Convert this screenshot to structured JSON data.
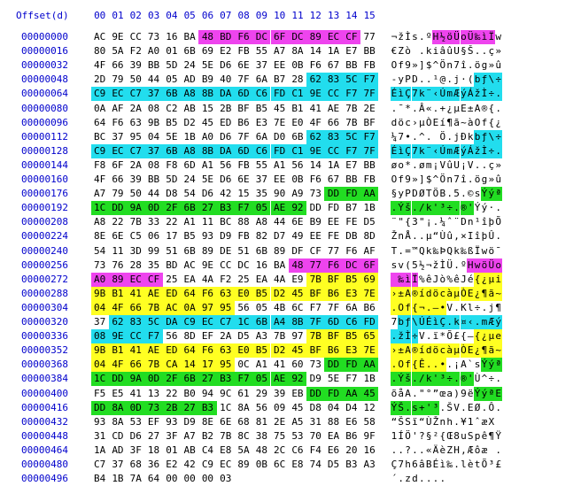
{
  "header": {
    "label": "Offset(d)",
    "columns": [
      "00",
      "01",
      "02",
      "03",
      "04",
      "05",
      "06",
      "07",
      "08",
      "09",
      "10",
      "11",
      "12",
      "13",
      "14",
      "15"
    ]
  },
  "colors": {
    "cyan": "#22ddee",
    "magenta": "#ee44ee",
    "green": "#22dd22",
    "yellow": "#ffff22"
  },
  "rows": [
    {
      "offset": "00000000",
      "hex": [
        "AC",
        "9E",
        "CC",
        "73",
        "16",
        "BA",
        "48",
        "BD",
        "F6",
        "DC",
        "6F",
        "DC",
        "89",
        "EC",
        "CF",
        "77"
      ],
      "ascii": "¬žÌs.ºH½öÜoÜ‰ìÏw",
      "hl": [
        null,
        null,
        null,
        null,
        null,
        null,
        "magenta",
        "magenta",
        "magenta",
        "magenta",
        "magenta",
        "magenta",
        "magenta",
        "magenta",
        "magenta",
        null
      ]
    },
    {
      "offset": "00000016",
      "hex": [
        "80",
        "5A",
        "F2",
        "A0",
        "01",
        "6B",
        "69",
        "E2",
        "FB",
        "55",
        "A7",
        "8A",
        "14",
        "1A",
        "E7",
        "BB"
      ],
      "ascii": "€Zò .kiâûU§Š..ç»",
      "hl": [
        null,
        null,
        null,
        null,
        null,
        null,
        null,
        null,
        null,
        null,
        null,
        null,
        null,
        null,
        null,
        null
      ]
    },
    {
      "offset": "00000032",
      "hex": [
        "4F",
        "66",
        "39",
        "BB",
        "5D",
        "24",
        "5E",
        "D6",
        "6E",
        "37",
        "EE",
        "0B",
        "F6",
        "67",
        "BB",
        "FB"
      ],
      "ascii": "Of9»]$^Ön7î.ög»û",
      "hl": [
        null,
        null,
        null,
        null,
        null,
        null,
        null,
        null,
        null,
        null,
        null,
        null,
        null,
        null,
        null,
        null
      ]
    },
    {
      "offset": "00000048",
      "hex": [
        "2D",
        "79",
        "50",
        "44",
        "05",
        "AD",
        "B9",
        "40",
        "7F",
        "6A",
        "B7",
        "28",
        "62",
        "83",
        "5C",
        "F7"
      ],
      "ascii": "-yPD..¹@.j·(bƒ\\÷",
      "hl": [
        null,
        null,
        null,
        null,
        null,
        null,
        null,
        null,
        null,
        null,
        null,
        null,
        "cyan",
        "cyan",
        "cyan",
        "cyan"
      ]
    },
    {
      "offset": "00000064",
      "hex": [
        "C9",
        "EC",
        "C7",
        "37",
        "6B",
        "A8",
        "8B",
        "DA",
        "6D",
        "C6",
        "FD",
        "C1",
        "9E",
        "CC",
        "F7",
        "7F"
      ],
      "ascii": "ÉìÇ7k¨‹ÚmÆýÁžÌ÷.",
      "hl": [
        "cyan",
        "cyan",
        "cyan",
        "cyan",
        "cyan",
        "cyan",
        "cyan",
        "cyan",
        "cyan",
        "cyan",
        "cyan",
        "cyan",
        "cyan",
        "cyan",
        "cyan",
        "cyan"
      ]
    },
    {
      "offset": "00000080",
      "hex": [
        "0A",
        "AF",
        "2A",
        "08",
        "C2",
        "AB",
        "15",
        "2B",
        "BF",
        "B5",
        "45",
        "B1",
        "41",
        "AE",
        "7B",
        "2E"
      ],
      "ascii": ".¯*.Â«.+¿µE±A®{.",
      "hl": [
        null,
        null,
        null,
        null,
        null,
        null,
        null,
        null,
        null,
        null,
        null,
        null,
        null,
        null,
        null,
        null
      ]
    },
    {
      "offset": "00000096",
      "hex": [
        "64",
        "F6",
        "63",
        "9B",
        "B5",
        "D2",
        "45",
        "ED",
        "B6",
        "E3",
        "7E",
        "E0",
        "4F",
        "66",
        "7B",
        "BF"
      ],
      "ascii": "döc›µÒEí¶ã~àOf{¿",
      "hl": [
        null,
        null,
        null,
        null,
        null,
        null,
        null,
        null,
        null,
        null,
        null,
        null,
        null,
        null,
        null,
        null
      ]
    },
    {
      "offset": "00000112",
      "hex": [
        "BC",
        "37",
        "95",
        "04",
        "5E",
        "1B",
        "A0",
        "D6",
        "7F",
        "6A",
        "D0",
        "6B",
        "62",
        "83",
        "5C",
        "F7"
      ],
      "ascii": "¼7•.^. Ö.jÐkbƒ\\÷",
      "hl": [
        null,
        null,
        null,
        null,
        null,
        null,
        null,
        null,
        null,
        null,
        null,
        null,
        "cyan",
        "cyan",
        "cyan",
        "cyan"
      ]
    },
    {
      "offset": "00000128",
      "hex": [
        "C9",
        "EC",
        "C7",
        "37",
        "6B",
        "A8",
        "8B",
        "DA",
        "6D",
        "C6",
        "FD",
        "C1",
        "9E",
        "CC",
        "F7",
        "7F"
      ],
      "ascii": "ÉìÇ7k¨‹ÚmÆýÁžÌ÷.",
      "hl": [
        "cyan",
        "cyan",
        "cyan",
        "cyan",
        "cyan",
        "cyan",
        "cyan",
        "cyan",
        "cyan",
        "cyan",
        "cyan",
        "cyan",
        "cyan",
        "cyan",
        "cyan",
        "cyan"
      ]
    },
    {
      "offset": "00000144",
      "hex": [
        "F8",
        "6F",
        "2A",
        "08",
        "F8",
        "6D",
        "A1",
        "56",
        "FB",
        "55",
        "A1",
        "56",
        "14",
        "1A",
        "E7",
        "BB"
      ],
      "ascii": "øo*.øm¡VûU¡V..ç»",
      "hl": [
        null,
        null,
        null,
        null,
        null,
        null,
        null,
        null,
        null,
        null,
        null,
        null,
        null,
        null,
        null,
        null
      ]
    },
    {
      "offset": "00000160",
      "hex": [
        "4F",
        "66",
        "39",
        "BB",
        "5D",
        "24",
        "5E",
        "D6",
        "6E",
        "37",
        "EE",
        "0B",
        "F6",
        "67",
        "BB",
        "FB"
      ],
      "ascii": "Of9»]$^Ön7î.ög»û",
      "hl": [
        null,
        null,
        null,
        null,
        null,
        null,
        null,
        null,
        null,
        null,
        null,
        null,
        null,
        null,
        null,
        null
      ]
    },
    {
      "offset": "00000176",
      "hex": [
        "A7",
        "79",
        "50",
        "44",
        "D8",
        "54",
        "D6",
        "42",
        "15",
        "35",
        "90",
        "A9",
        "73",
        "DD",
        "FD",
        "AA"
      ],
      "ascii": "§yPDØTÖB.5.©sÝýª",
      "hl": [
        null,
        null,
        null,
        null,
        null,
        null,
        null,
        null,
        null,
        null,
        null,
        null,
        null,
        "green",
        "green",
        "green"
      ]
    },
    {
      "offset": "00000192",
      "hex": [
        "1C",
        "DD",
        "9A",
        "0D",
        "2F",
        "6B",
        "27",
        "B3",
        "F7",
        "05",
        "AE",
        "92",
        "DD",
        "FD",
        "B7",
        "1B"
      ],
      "ascii": ".Ýš./k'³÷.®'Ýý·.",
      "hl": [
        "green",
        "green",
        "green",
        "green",
        "green",
        "green",
        "green",
        "green",
        "green",
        "green",
        "green",
        "green",
        null,
        null,
        null,
        null
      ]
    },
    {
      "offset": "00000208",
      "hex": [
        "A8",
        "22",
        "7B",
        "33",
        "22",
        "A1",
        "11",
        "BC",
        "88",
        "A8",
        "44",
        "6E",
        "B9",
        "EE",
        "FE",
        "D5"
      ],
      "ascii": "¨\"{3\"¡.¼ˆ¨Dn¹îþÕ",
      "hl": [
        null,
        null,
        null,
        null,
        null,
        null,
        null,
        null,
        null,
        null,
        null,
        null,
        null,
        null,
        null,
        null
      ]
    },
    {
      "offset": "00000224",
      "hex": [
        "8E",
        "6E",
        "C5",
        "06",
        "17",
        "B5",
        "93",
        "D9",
        "FB",
        "82",
        "D7",
        "49",
        "EE",
        "FE",
        "DB",
        "8D"
      ],
      "ascii": "ŽnÅ..µ“Ùû‚×IîþÛ.",
      "hl": [
        null,
        null,
        null,
        null,
        null,
        null,
        null,
        null,
        null,
        null,
        null,
        null,
        null,
        null,
        null,
        null
      ]
    },
    {
      "offset": "00000240",
      "hex": [
        "54",
        "11",
        "3D",
        "99",
        "51",
        "6B",
        "89",
        "DE",
        "51",
        "6B",
        "89",
        "DF",
        "CF",
        "77",
        "F6",
        "AF"
      ],
      "ascii": "T.=™Qk‰ÞQk‰ßÏwö¯",
      "hl": [
        null,
        null,
        null,
        null,
        null,
        null,
        null,
        null,
        null,
        null,
        null,
        null,
        null,
        null,
        null,
        null
      ]
    },
    {
      "offset": "00000256",
      "hex": [
        "73",
        "76",
        "28",
        "35",
        "BD",
        "AC",
        "9E",
        "CC",
        "DC",
        "16",
        "BA",
        "48",
        "77",
        "F6",
        "DC",
        "6F"
      ],
      "ascii": "sv(5½¬žÌÜ.ºHwöÜo",
      "hl": [
        null,
        null,
        null,
        null,
        null,
        null,
        null,
        null,
        null,
        null,
        null,
        "magenta",
        "magenta",
        "magenta",
        "magenta",
        "magenta"
      ]
    },
    {
      "offset": "00000272",
      "hex": [
        "A0",
        "89",
        "EC",
        "CF",
        "25",
        "EA",
        "4A",
        "F2",
        "25",
        "EA",
        "4A",
        "E9",
        "7B",
        "BF",
        "B5",
        "69"
      ],
      "ascii": " ‰ìÏ%êJò%êJé{¿µi",
      "hl": [
        "magenta",
        "magenta",
        "magenta",
        "magenta",
        null,
        null,
        null,
        null,
        null,
        null,
        null,
        null,
        "yellow",
        "yellow",
        "yellow",
        "yellow"
      ]
    },
    {
      "offset": "00000288",
      "hex": [
        "9B",
        "B1",
        "41",
        "AE",
        "ED",
        "64",
        "F6",
        "63",
        "E0",
        "B5",
        "D2",
        "45",
        "BF",
        "B6",
        "E3",
        "7E"
      ],
      "ascii": "›±A®ídöcàµÒE¿¶ã~",
      "hl": [
        "yellow",
        "yellow",
        "yellow",
        "yellow",
        "yellow",
        "yellow",
        "yellow",
        "yellow",
        "yellow",
        "yellow",
        "yellow",
        "yellow",
        "yellow",
        "yellow",
        "yellow",
        "yellow"
      ]
    },
    {
      "offset": "00000304",
      "hex": [
        "04",
        "4F",
        "66",
        "7B",
        "AC",
        "0A",
        "97",
        "95",
        "56",
        "05",
        "4B",
        "6C",
        "F7",
        "7F",
        "6A",
        "B6"
      ],
      "ascii": ".Of{¬.—•V.Kl÷.j¶",
      "hl": [
        "yellow",
        "yellow",
        "yellow",
        "yellow",
        "yellow",
        "yellow",
        "yellow",
        "yellow",
        null,
        null,
        null,
        null,
        null,
        null,
        null,
        null
      ]
    },
    {
      "offset": "00000320",
      "hex": [
        "37",
        "62",
        "83",
        "5C",
        "DA",
        "C9",
        "EC",
        "C7",
        "1C",
        "6B",
        "A4",
        "8B",
        "7F",
        "6D",
        "C6",
        "FD"
      ],
      "ascii": "7bƒ\\ÚÉìÇ.k¤‹.mÆý",
      "hl": [
        null,
        "cyan",
        "cyan",
        "cyan",
        "cyan",
        "cyan",
        "cyan",
        "cyan",
        "cyan",
        "cyan",
        "cyan",
        "cyan",
        "cyan",
        "cyan",
        "cyan",
        "cyan"
      ]
    },
    {
      "offset": "00000336",
      "hex": [
        "08",
        "9E",
        "CC",
        "F7",
        "56",
        "8D",
        "EF",
        "2A",
        "D5",
        "A3",
        "7B",
        "97",
        "7B",
        "BF",
        "B5",
        "65"
      ],
      "ascii": ".žÌ÷V.ï*Õ£{—{¿µe",
      "hl": [
        "cyan",
        "cyan",
        "cyan",
        "cyan",
        null,
        null,
        null,
        null,
        null,
        null,
        null,
        null,
        "yellow",
        "yellow",
        "yellow",
        "yellow"
      ]
    },
    {
      "offset": "00000352",
      "hex": [
        "9B",
        "B1",
        "41",
        "AE",
        "ED",
        "64",
        "F6",
        "63",
        "E0",
        "B5",
        "D2",
        "45",
        "BF",
        "B6",
        "E3",
        "7E"
      ],
      "ascii": "›±A®ídöcàµÒE¿¶ã~",
      "hl": [
        "yellow",
        "yellow",
        "yellow",
        "yellow",
        "yellow",
        "yellow",
        "yellow",
        "yellow",
        "yellow",
        "yellow",
        "yellow",
        "yellow",
        "yellow",
        "yellow",
        "yellow",
        "yellow"
      ]
    },
    {
      "offset": "00000368",
      "hex": [
        "04",
        "4F",
        "66",
        "7B",
        "CA",
        "14",
        "17",
        "95",
        "0C",
        "A1",
        "41",
        "60",
        "73",
        "DD",
        "FD",
        "AA"
      ],
      "ascii": ".Of{Ê..•.¡A`sÝýª",
      "hl": [
        "yellow",
        "yellow",
        "yellow",
        "yellow",
        "yellow",
        "yellow",
        "yellow",
        "yellow",
        null,
        null,
        null,
        null,
        null,
        "green",
        "green",
        "green"
      ]
    },
    {
      "offset": "00000384",
      "hex": [
        "1C",
        "DD",
        "9A",
        "0D",
        "2F",
        "6B",
        "27",
        "B3",
        "F7",
        "05",
        "AE",
        "92",
        "D9",
        "5E",
        "F7",
        "1B"
      ],
      "ascii": ".Ýš./k'³÷.®'Ù^÷.",
      "hl": [
        "green",
        "green",
        "green",
        "green",
        "green",
        "green",
        "green",
        "green",
        "green",
        "green",
        "green",
        "green",
        null,
        null,
        null,
        null
      ]
    },
    {
      "offset": "00000400",
      "hex": [
        "F5",
        "E5",
        "41",
        "13",
        "22",
        "B0",
        "94",
        "9C",
        "61",
        "29",
        "39",
        "EB",
        "DD",
        "FD",
        "AA",
        "45"
      ],
      "ascii": "õåA.\"°”œa)9ëÝýªE",
      "hl": [
        null,
        null,
        null,
        null,
        null,
        null,
        null,
        null,
        null,
        null,
        null,
        null,
        "green",
        "green",
        "green",
        "green"
      ]
    },
    {
      "offset": "00000416",
      "hex": [
        "DD",
        "8A",
        "0D",
        "73",
        "2B",
        "27",
        "B3",
        "1C",
        "8A",
        "56",
        "09",
        "45",
        "D8",
        "04",
        "D4",
        "12"
      ],
      "ascii": "ÝŠ.s+'³.ŠV.EØ.Ô.",
      "hl": [
        "green",
        "green",
        "green",
        "green",
        "green",
        "green",
        "green",
        null,
        null,
        null,
        null,
        null,
        null,
        null,
        null,
        null
      ]
    },
    {
      "offset": "00000432",
      "hex": [
        "93",
        "8A",
        "53",
        "EF",
        "93",
        "D9",
        "8E",
        "6E",
        "68",
        "81",
        "2E",
        "A5",
        "31",
        "88",
        "E6",
        "58"
      ],
      "ascii": "“ŠSï“ÙŽnh.¥1ˆæX",
      "hl": [
        null,
        null,
        null,
        null,
        null,
        null,
        null,
        null,
        null,
        null,
        null,
        null,
        null,
        null,
        null,
        null
      ]
    },
    {
      "offset": "00000448",
      "hex": [
        "31",
        "CD",
        "D6",
        "27",
        "3F",
        "A7",
        "B2",
        "7B",
        "8C",
        "38",
        "75",
        "53",
        "70",
        "EA",
        "B6",
        "9F"
      ],
      "ascii": "1ÍÖ'?§²{Œ8uSpê¶Ÿ",
      "hl": [
        null,
        null,
        null,
        null,
        null,
        null,
        null,
        null,
        null,
        null,
        null,
        null,
        null,
        null,
        null,
        null
      ]
    },
    {
      "offset": "00000464",
      "hex": [
        "1A",
        "AD",
        "3F",
        "18",
        "01",
        "AB",
        "C4",
        "E8",
        "5A",
        "48",
        "2C",
        "C6",
        "F4",
        "E6",
        "20",
        "16"
      ],
      "ascii": "..?..«ÄèZH,Æôæ .",
      "hl": [
        null,
        null,
        null,
        null,
        null,
        null,
        null,
        null,
        null,
        null,
        null,
        null,
        null,
        null,
        null,
        null
      ]
    },
    {
      "offset": "00000480",
      "hex": [
        "C7",
        "37",
        "68",
        "36",
        "E2",
        "42",
        "C9",
        "EC",
        "89",
        "0B",
        "6C",
        "E8",
        "74",
        "D5",
        "B3",
        "A3"
      ],
      "ascii": "Ç7h6âBÉì‰.lètÕ³£",
      "hl": [
        null,
        null,
        null,
        null,
        null,
        null,
        null,
        null,
        null,
        null,
        null,
        null,
        null,
        null,
        null,
        null
      ]
    },
    {
      "offset": "00000496",
      "hex": [
        "B4",
        "1B",
        "7A",
        "64",
        "00",
        "00",
        "00",
        "03",
        "",
        "",
        "",
        "",
        "",
        "",
        "",
        ""
      ],
      "ascii": "´.zd....",
      "hl": [
        null,
        null,
        null,
        null,
        null,
        null,
        null,
        null,
        null,
        null,
        null,
        null,
        null,
        null,
        null,
        null
      ]
    }
  ]
}
